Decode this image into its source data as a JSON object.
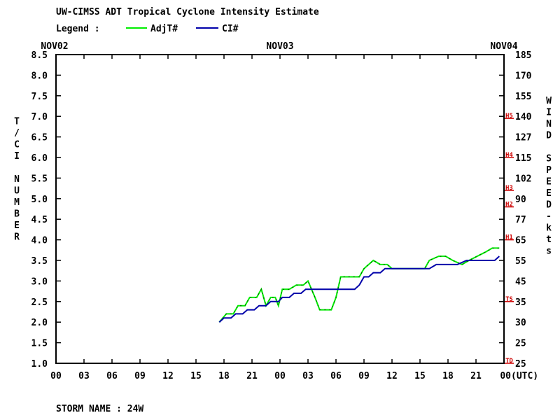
{
  "title": "UW-CIMSS ADT Tropical Cyclone Intensity Estimate",
  "legend_label": "Legend :",
  "storm_name": "STORM NAME : 24W",
  "chart_data": {
    "type": "line",
    "title": "UW-CIMSS ADT Tropical Cyclone Intensity Estimate",
    "xlabel": "(UTC)",
    "ylabel": "T/CI NUMBER",
    "y2label": "WIND SPEED-kts",
    "date_labels": [
      "NOV02",
      "NOV03",
      "NOV04"
    ],
    "x_tick_labels": [
      "00",
      "03",
      "06",
      "09",
      "12",
      "15",
      "18",
      "21",
      "00",
      "03",
      "06",
      "09",
      "12",
      "15",
      "18",
      "21",
      "00"
    ],
    "xlim": [
      "NOV02 00 UTC",
      "NOV04 00 UTC"
    ],
    "ylim": [
      1.0,
      8.5
    ],
    "y_ticks": [
      "1.0",
      "1.5",
      "2.0",
      "2.5",
      "3.0",
      "3.5",
      "4.0",
      "4.5",
      "5.0",
      "5.5",
      "6.0",
      "6.5",
      "7.0",
      "7.5",
      "8.0",
      "8.5"
    ],
    "y2_ticks": [
      "25",
      "25",
      "30",
      "35",
      "45",
      "55",
      "65",
      "77",
      "90",
      "102",
      "115",
      "127",
      "140",
      "155",
      "170",
      "185"
    ],
    "category_markers": [
      {
        "label": "TD",
        "t": 1.0
      },
      {
        "label": "TS",
        "t": 2.5
      },
      {
        "label": "H1",
        "t": 4.0
      },
      {
        "label": "H2",
        "t": 4.8
      },
      {
        "label": "H3",
        "t": 5.2
      },
      {
        "label": "H4",
        "t": 6.0
      },
      {
        "label": "H5",
        "t": 6.95
      }
    ],
    "grid": false,
    "legend_position": "top",
    "series": [
      {
        "name": "AdjT#",
        "color": "#00ee00",
        "points": [
          [
            "NOV02 17:30",
            2.0
          ],
          [
            "NOV02 18:15",
            2.2
          ],
          [
            "NOV02 19:00",
            2.2
          ],
          [
            "NOV02 19:30",
            2.4
          ],
          [
            "NOV02 20:15",
            2.4
          ],
          [
            "NOV02 20:45",
            2.6
          ],
          [
            "NOV02 21:30",
            2.6
          ],
          [
            "NOV02 22:00",
            2.8
          ],
          [
            "NOV02 22:30",
            2.4
          ],
          [
            "NOV02 23:00",
            2.6
          ],
          [
            "NOV02 23:30",
            2.6
          ],
          [
            "NOV02 23:50",
            2.4
          ],
          [
            "NOV03 00:15",
            2.8
          ],
          [
            "NOV03 01:00",
            2.8
          ],
          [
            "NOV03 01:45",
            2.9
          ],
          [
            "NOV03 02:30",
            2.9
          ],
          [
            "NOV03 03:00",
            3.0
          ],
          [
            "NOV03 03:45",
            2.6
          ],
          [
            "NOV03 04:15",
            2.3
          ],
          [
            "NOV03 05:30",
            2.3
          ],
          [
            "NOV03 06:00",
            2.6
          ],
          [
            "NOV03 06:30",
            3.1
          ],
          [
            "NOV03 08:30",
            3.1
          ],
          [
            "NOV03 09:00",
            3.3
          ],
          [
            "NOV03 10:00",
            3.5
          ],
          [
            "NOV03 10:45",
            3.4
          ],
          [
            "NOV03 11:30",
            3.4
          ],
          [
            "NOV03 12:00",
            3.3
          ],
          [
            "NOV03 15:30",
            3.3
          ],
          [
            "NOV03 16:00",
            3.5
          ],
          [
            "NOV03 17:00",
            3.6
          ],
          [
            "NOV03 17:45",
            3.6
          ],
          [
            "NOV03 18:30",
            3.5
          ],
          [
            "NOV03 19:30",
            3.4
          ],
          [
            "NOV03 20:15",
            3.5
          ],
          [
            "NOV03 22:00",
            3.7
          ],
          [
            "NOV03 22:45",
            3.8
          ],
          [
            "NOV03 23:30",
            3.8
          ]
        ]
      },
      {
        "name": "CI#",
        "color": "#0000aa",
        "points": [
          [
            "NOV02 17:30",
            2.0
          ],
          [
            "NOV02 18:00",
            2.1
          ],
          [
            "NOV02 18:45",
            2.1
          ],
          [
            "NOV02 19:15",
            2.2
          ],
          [
            "NOV02 20:00",
            2.2
          ],
          [
            "NOV02 20:30",
            2.3
          ],
          [
            "NOV02 21:15",
            2.3
          ],
          [
            "NOV02 21:45",
            2.4
          ],
          [
            "NOV02 22:30",
            2.4
          ],
          [
            "NOV02 23:00",
            2.5
          ],
          [
            "NOV02 23:50",
            2.5
          ],
          [
            "NOV03 00:15",
            2.6
          ],
          [
            "NOV03 01:00",
            2.6
          ],
          [
            "NOV03 01:30",
            2.7
          ],
          [
            "NOV03 02:15",
            2.7
          ],
          [
            "NOV03 02:45",
            2.8
          ],
          [
            "NOV03 08:00",
            2.8
          ],
          [
            "NOV03 08:30",
            2.9
          ],
          [
            "NOV03 09:00",
            3.1
          ],
          [
            "NOV03 09:30",
            3.1
          ],
          [
            "NOV03 10:00",
            3.2
          ],
          [
            "NOV03 10:45",
            3.2
          ],
          [
            "NOV03 11:15",
            3.3
          ],
          [
            "NOV03 16:00",
            3.3
          ],
          [
            "NOV03 16:45",
            3.4
          ],
          [
            "NOV03 18:30",
            3.4
          ],
          [
            "NOV03 19:00",
            3.4
          ],
          [
            "NOV03 20:00",
            3.5
          ],
          [
            "NOV03 23:00",
            3.5
          ],
          [
            "NOV03 23:30",
            3.6
          ]
        ]
      }
    ]
  }
}
